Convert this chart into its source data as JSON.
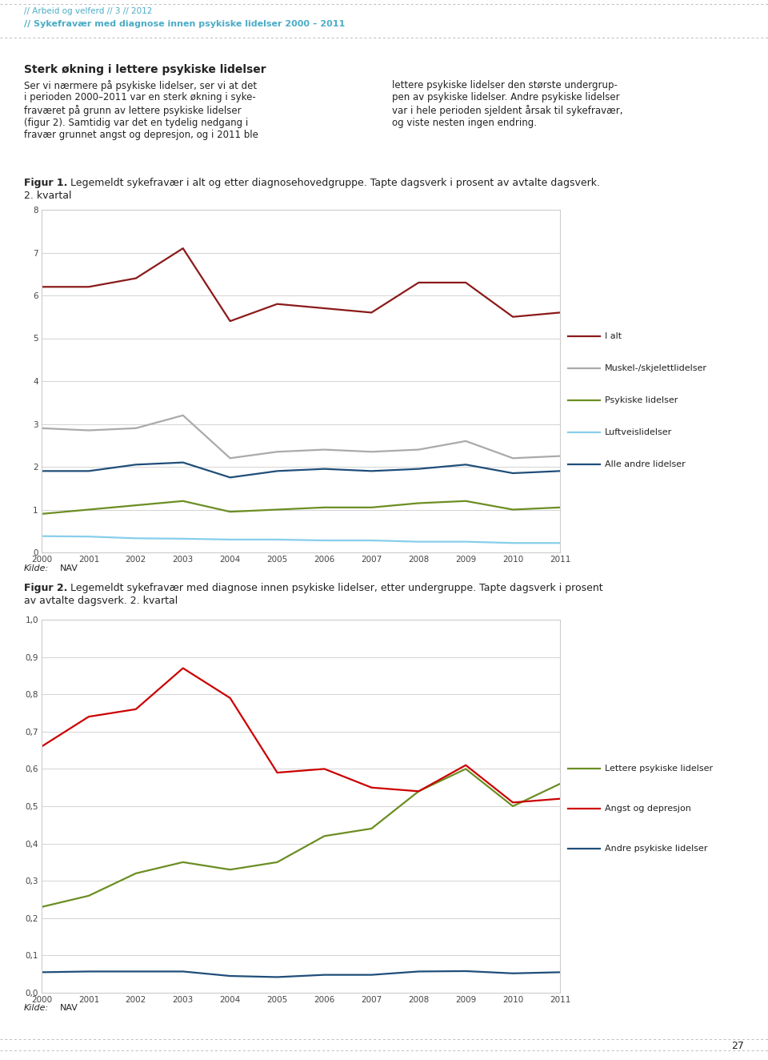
{
  "years": [
    2000,
    2001,
    2002,
    2003,
    2004,
    2005,
    2006,
    2007,
    2008,
    2009,
    2010,
    2011
  ],
  "fig1": {
    "i_alt": [
      6.2,
      6.2,
      6.4,
      7.1,
      5.4,
      5.8,
      5.7,
      5.6,
      6.3,
      6.3,
      5.5,
      5.6
    ],
    "muskel": [
      2.9,
      2.85,
      2.9,
      3.2,
      2.2,
      2.35,
      2.4,
      2.35,
      2.4,
      2.6,
      2.2,
      2.25
    ],
    "psykiske": [
      0.9,
      1.0,
      1.1,
      1.2,
      0.95,
      1.0,
      1.05,
      1.05,
      1.15,
      1.2,
      1.0,
      1.05
    ],
    "luft": [
      0.38,
      0.37,
      0.33,
      0.32,
      0.3,
      0.3,
      0.28,
      0.28,
      0.25,
      0.25,
      0.22,
      0.22
    ],
    "andre": [
      1.9,
      1.9,
      2.05,
      2.1,
      1.75,
      1.9,
      1.95,
      1.9,
      1.95,
      2.05,
      1.85,
      1.9
    ],
    "colors": {
      "i_alt": "#8B1A1A",
      "muskel": "#AAAAAA",
      "psykiske": "#6B8E23",
      "luft": "#87CEEB",
      "andre": "#1F4E79"
    },
    "legend_labels": [
      "I alt",
      "Muskel-/skjelettlidelser",
      "Psykiske lidelser",
      "Luftveislidelser",
      "Alle andre lidelser"
    ],
    "ylim": [
      0,
      8
    ],
    "yticks": [
      0,
      1,
      2,
      3,
      4,
      5,
      6,
      7,
      8
    ]
  },
  "fig2": {
    "lettere": [
      0.23,
      0.26,
      0.32,
      0.35,
      0.33,
      0.35,
      0.42,
      0.44,
      0.54,
      0.6,
      0.5,
      0.56
    ],
    "angst": [
      0.66,
      0.74,
      0.76,
      0.87,
      0.79,
      0.59,
      0.6,
      0.55,
      0.54,
      0.61,
      0.51,
      0.52
    ],
    "andre": [
      0.055,
      0.057,
      0.057,
      0.057,
      0.045,
      0.042,
      0.048,
      0.048,
      0.057,
      0.058,
      0.052,
      0.055
    ],
    "colors": {
      "lettere": "#6B8E23",
      "angst": "#CC0000",
      "andre": "#1F4E79"
    },
    "legend_labels": [
      "Lettere psykiske lidelser",
      "Angst og depresjon",
      "Andre psykiske lidelser"
    ],
    "ylim": [
      0.0,
      1.0
    ],
    "yticks": [
      0.0,
      0.1,
      0.2,
      0.3,
      0.4,
      0.5,
      0.6,
      0.7,
      0.8,
      0.9,
      1.0
    ]
  },
  "header_line1": "// Arbeid og velferd // 3 // 2012",
  "header_line2": "// Sykefravær med diagnose innen psykiske lidelser 2000 – 2011",
  "header_color": "#4BACC6",
  "page_number": "27",
  "background_color": "#FFFFFF",
  "box_edge_color": "#CCCCCC",
  "dotted_line_color": "#BBBBBB",
  "grid_color": "#CCCCCC",
  "tick_color": "#444444",
  "text_color": "#222222",
  "linewidth": 1.6
}
